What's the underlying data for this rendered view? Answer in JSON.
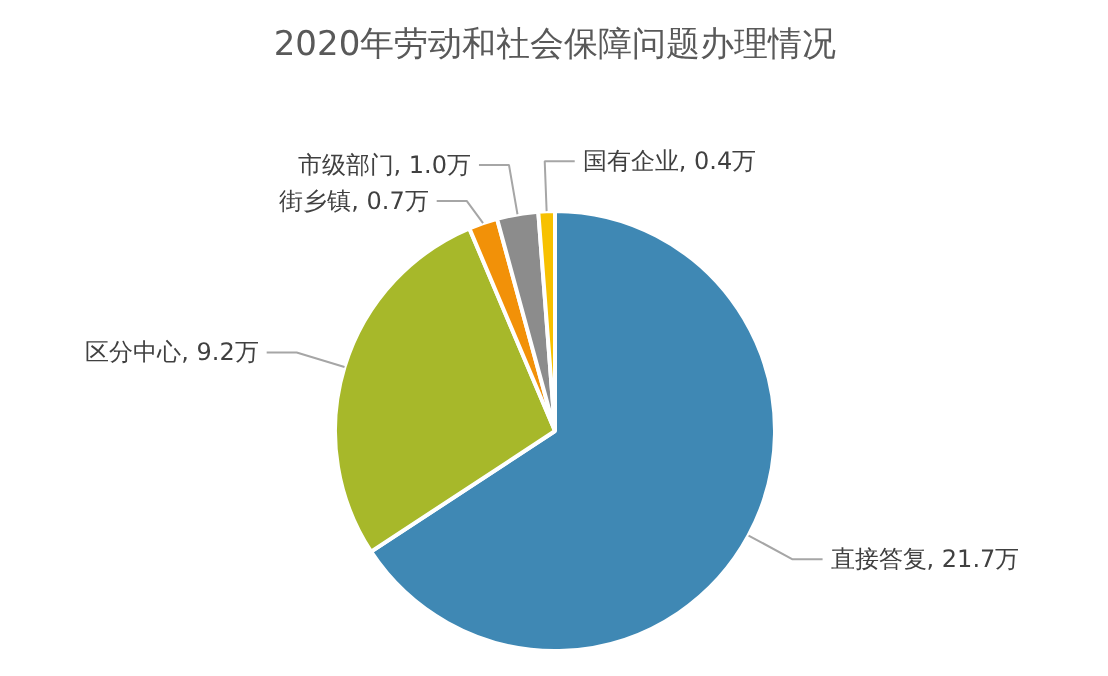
{
  "chart_data": {
    "type": "pie",
    "title": "2020年劳动和社会保障问题办理情况",
    "categories": [
      "直接答复",
      "区分中心",
      "街乡镇",
      "市级部门",
      "国有企业"
    ],
    "values": [
      21.7,
      9.2,
      0.7,
      1.0,
      0.4
    ],
    "value_labels": [
      "21.7万",
      "9.2万",
      "0.7万",
      "1.0万",
      "0.4万"
    ],
    "colors": [
      "#3f88b4",
      "#a7b82a",
      "#f29108",
      "#8c8c8c",
      "#f7c100"
    ]
  }
}
